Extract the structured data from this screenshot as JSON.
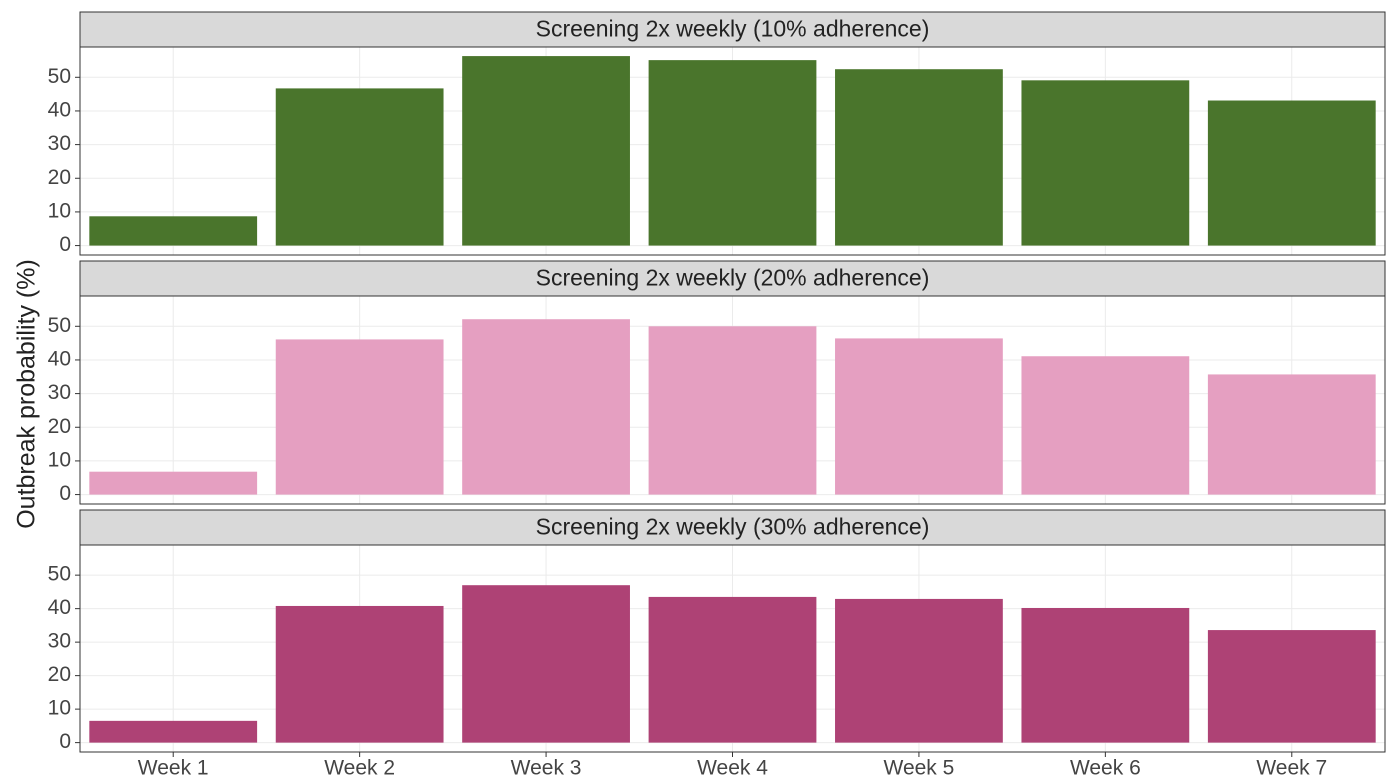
{
  "ylabel": "Outbreak probability (%)",
  "categories": [
    "Week 1",
    "Week 2",
    "Week 3",
    "Week 4",
    "Week 5",
    "Week 6",
    "Week 7"
  ],
  "chart_data": [
    {
      "type": "bar",
      "title": "Screening 2x weekly (10% adherence)",
      "color": "#4a752c",
      "values": [
        8.7,
        46.7,
        56.3,
        55.1,
        52.4,
        49.1,
        43.1
      ],
      "ylim": [
        -2.8,
        59
      ],
      "yticks": [
        0,
        10,
        20,
        30,
        40,
        50
      ],
      "grid": true
    },
    {
      "type": "bar",
      "title": "Screening 2x weekly (20% adherence)",
      "color": "#e59fc1",
      "values": [
        6.8,
        46.1,
        52.1,
        50,
        46.4,
        41.1,
        35.7
      ],
      "ylim": [
        -2.8,
        59
      ],
      "yticks": [
        0,
        10,
        20,
        30,
        40,
        50
      ],
      "grid": true
    },
    {
      "type": "bar",
      "title": "Screening 2x weekly (30% adherence)",
      "color": "#ae4275",
      "values": [
        6.5,
        40.8,
        47,
        43.5,
        42.9,
        40.2,
        33.6
      ],
      "ylim": [
        -2.8,
        59
      ],
      "yticks": [
        0,
        10,
        20,
        30,
        40,
        50
      ],
      "grid": true
    }
  ]
}
